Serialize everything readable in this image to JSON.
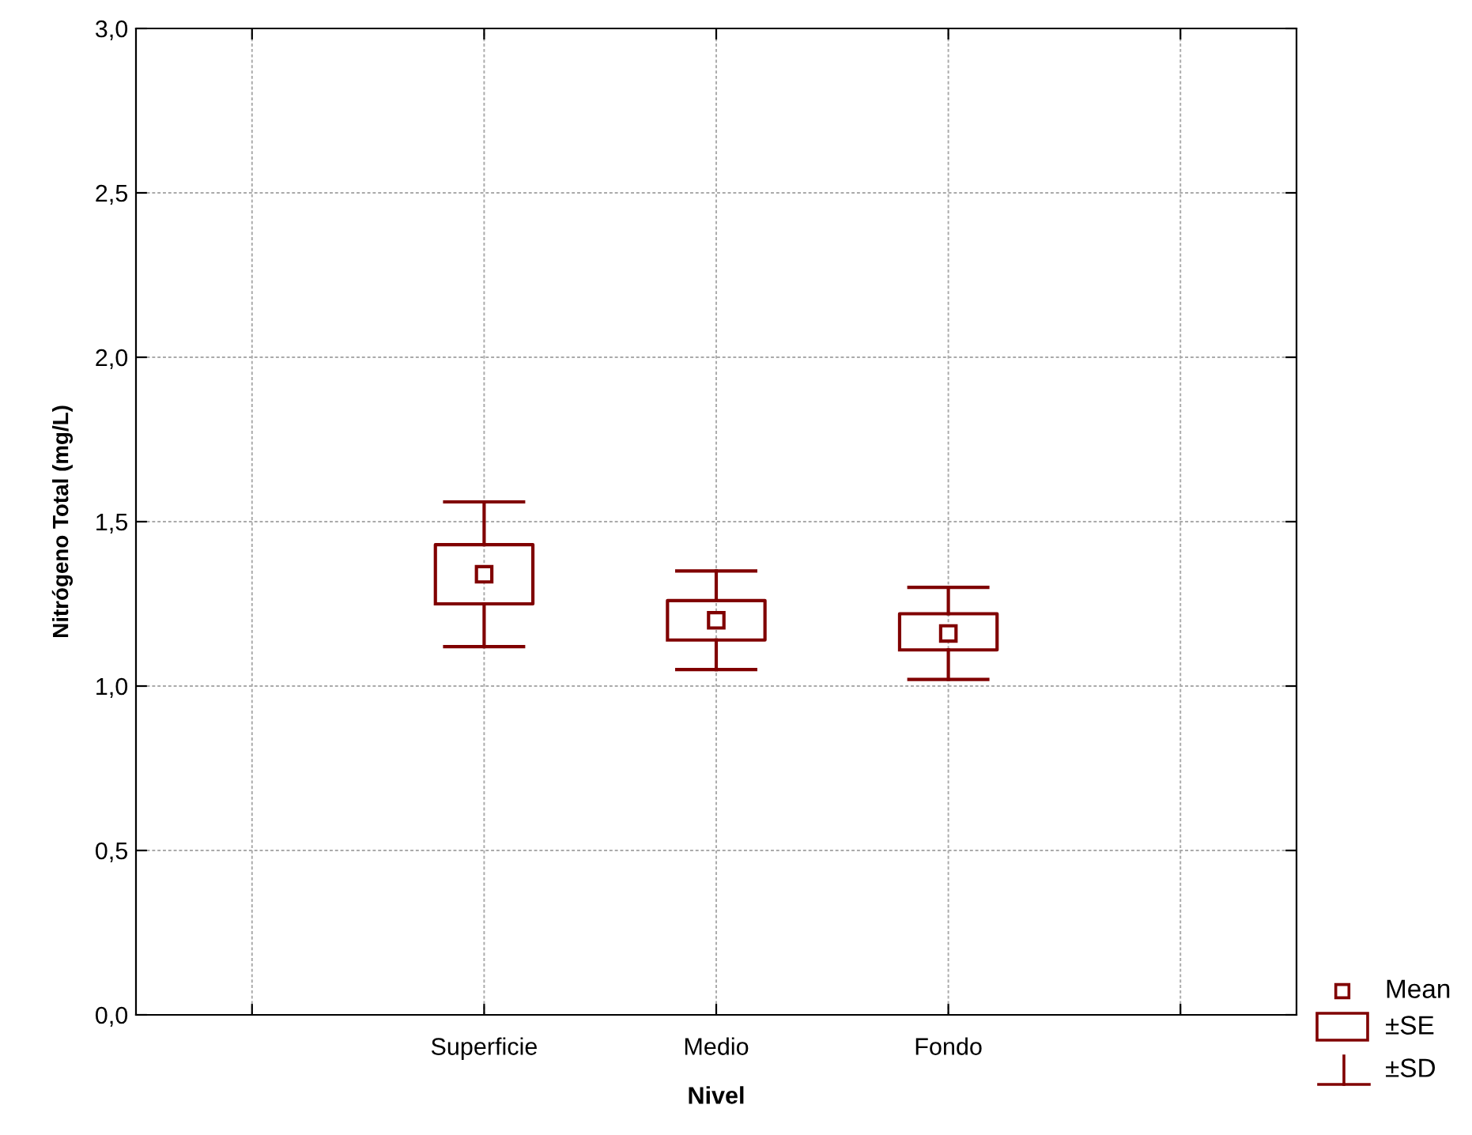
{
  "chart_data": {
    "type": "box",
    "xlabel": "Nivel",
    "ylabel": "Nitrógeno Total (mg/L)",
    "categories": [
      null,
      "Superficie",
      "Medio",
      "Fondo",
      null
    ],
    "boxes": [
      null,
      {
        "low": 1.12,
        "q1": 1.25,
        "mean": 1.34,
        "q3": 1.43,
        "high": 1.56
      },
      {
        "low": 1.05,
        "q1": 1.14,
        "mean": 1.2,
        "q3": 1.26,
        "high": 1.35
      },
      {
        "low": 1.02,
        "q1": 1.11,
        "mean": 1.16,
        "q3": 1.22,
        "high": 1.3
      },
      null
    ],
    "color": "#800000",
    "ylim": [
      0,
      3
    ],
    "yticks": [
      {
        "value": 0,
        "label": "0,0"
      },
      {
        "value": 0.5,
        "label": "0,5"
      },
      {
        "value": 1,
        "label": "1,0"
      },
      {
        "value": 1.5,
        "label": "1,5"
      },
      {
        "value": 2,
        "label": "2,0"
      },
      {
        "value": 2.5,
        "label": "2,5"
      },
      {
        "value": 3,
        "label": "3,0"
      }
    ],
    "grid": true,
    "marker": "square",
    "annotations": [
      "Mean",
      "±SE",
      "±SD"
    ]
  }
}
